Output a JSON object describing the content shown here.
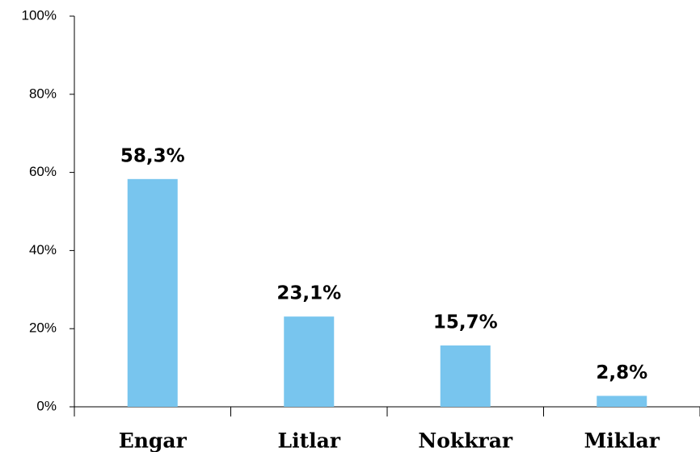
{
  "chart_data": {
    "type": "bar",
    "categories": [
      "Engar",
      "Litlar",
      "Nokkrar",
      "Miklar"
    ],
    "values": [
      58.3,
      23.1,
      15.7,
      2.8
    ],
    "value_labels": [
      "58,3%",
      "23,1%",
      "15,7%",
      "2,8%"
    ],
    "color": "#78c5ee",
    "ylim": [
      0,
      100
    ],
    "yticks": [
      {
        "value": 0,
        "label": "0%"
      },
      {
        "value": 20,
        "label": "20%"
      },
      {
        "value": 40,
        "label": "40%"
      },
      {
        "value": 60,
        "label": "60%"
      },
      {
        "value": 80,
        "label": "80%"
      },
      {
        "value": 100,
        "label": "100%"
      }
    ],
    "grid": false
  }
}
